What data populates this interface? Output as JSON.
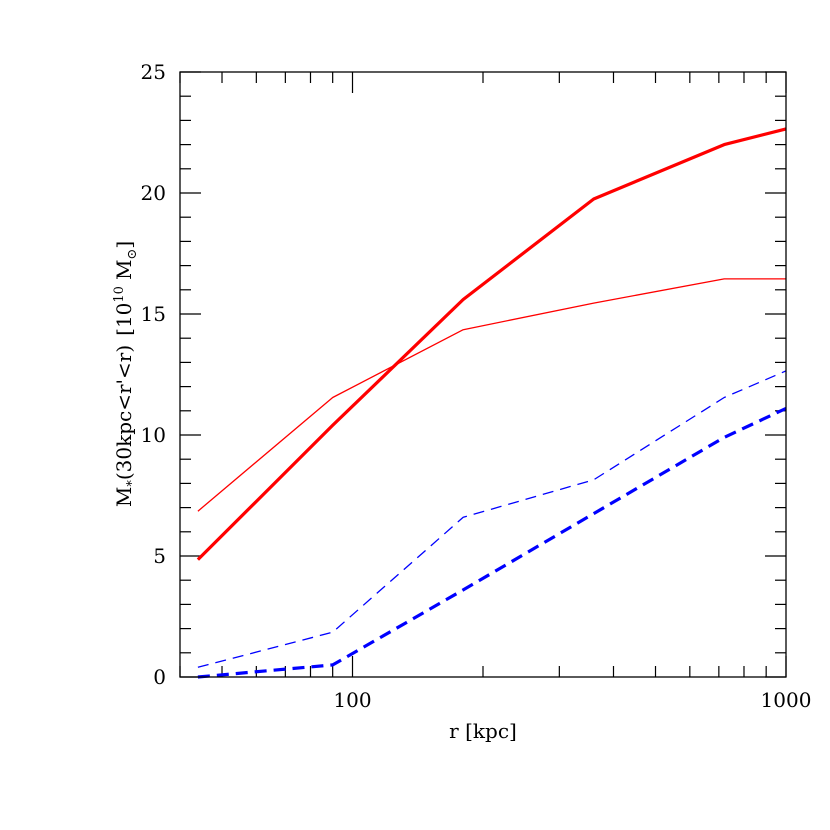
{
  "chart_data": {
    "type": "line",
    "xlabel": "r [kpc]",
    "ylabel": {
      "main": "M",
      "sub": "*",
      "condition": "(30kpc<r'<r)",
      "unit_open": "[10",
      "unit_exp": "10",
      "unit_m": "M",
      "unit_sub": "⊙",
      "unit_close": "]"
    },
    "x_scale": "log",
    "xlim": [
      40,
      1000
    ],
    "ylim": [
      0,
      25
    ],
    "x_tick_labels": [
      "100",
      "1000"
    ],
    "y_tick_labels": [
      "0",
      "5",
      "10",
      "15",
      "20",
      "25"
    ],
    "grid": false,
    "colors": {
      "red": "#ff0000",
      "blue": "#0000ff"
    },
    "series": [
      {
        "style": "solid",
        "width": "thick",
        "color": "#ff0000",
        "x": [
          44,
          90,
          180,
          360,
          720,
          1000
        ],
        "y": [
          4.85,
          10.4,
          15.6,
          19.75,
          22.0,
          22.65
        ]
      },
      {
        "style": "solid",
        "width": "thin",
        "color": "#ff0000",
        "x": [
          44,
          90,
          180,
          360,
          720,
          1000
        ],
        "y": [
          6.85,
          11.55,
          14.35,
          15.45,
          16.45,
          16.45
        ]
      },
      {
        "style": "dashed",
        "width": "thin",
        "color": "#0000ff",
        "x": [
          44,
          90,
          180,
          360,
          720,
          1000
        ],
        "y": [
          0.4,
          1.85,
          6.6,
          8.15,
          11.55,
          12.65
        ]
      },
      {
        "style": "dashed",
        "width": "thick",
        "color": "#0000ff",
        "x": [
          44,
          90,
          180,
          360,
          720,
          1000
        ],
        "y": [
          0.0,
          0.5,
          3.6,
          6.75,
          9.9,
          11.1
        ]
      }
    ]
  }
}
